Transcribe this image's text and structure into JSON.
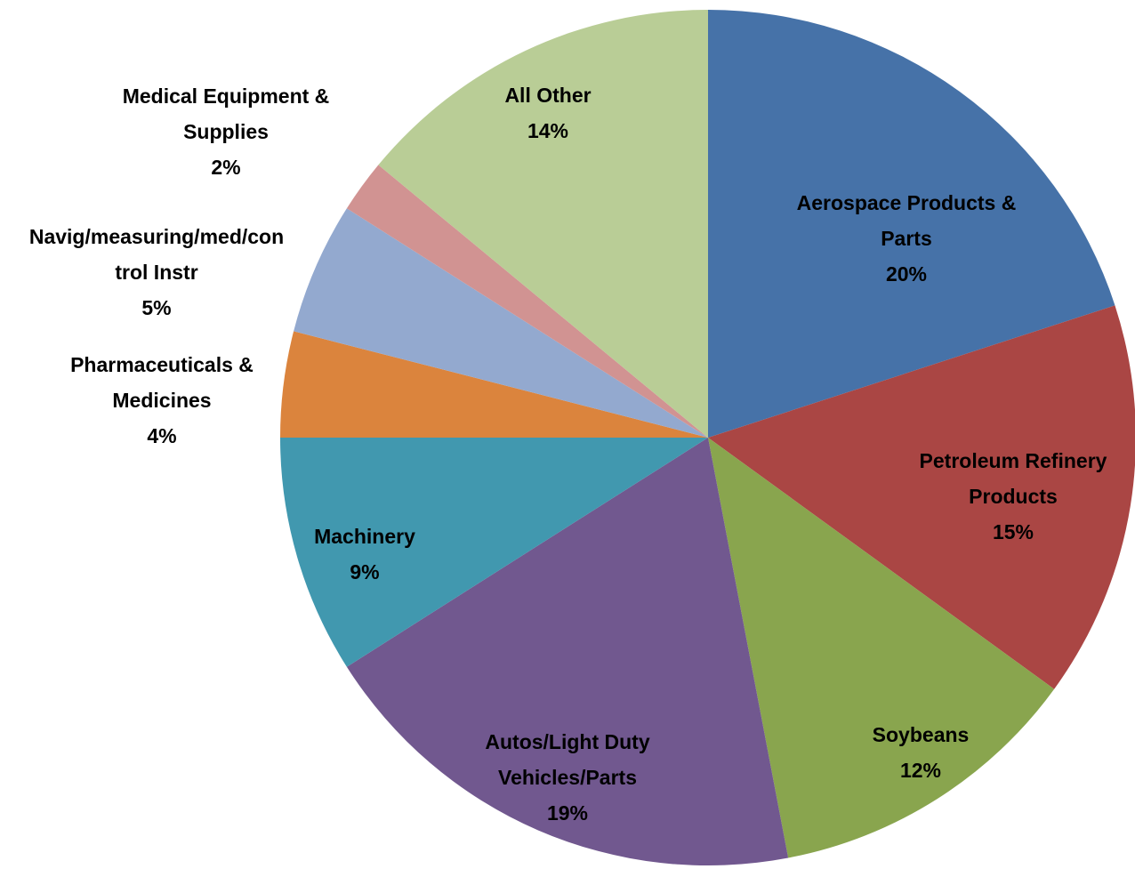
{
  "chart_data": {
    "type": "pie",
    "categories": [
      "Aerospace Products & Parts",
      "Petroleum Refinery Products",
      "Soybeans",
      "Autos/Light Duty Vehicles/Parts",
      "Machinery",
      "Pharmaceuticals & Medicines",
      "Navig/measuring/med/control Instr",
      "Medical Equipment & Supplies",
      "All Other"
    ],
    "values": [
      20,
      15,
      12,
      19,
      9,
      4,
      5,
      2,
      14
    ],
    "value_labels": [
      "20%",
      "15%",
      "12%",
      "19%",
      "9%",
      "4%",
      "5%",
      "2%",
      "14%"
    ],
    "colors": [
      "#4672a8",
      "#aa4644",
      "#89a54e",
      "#71588f",
      "#4198af",
      "#db843d",
      "#93a9cf",
      "#d19392",
      "#b9cd96"
    ]
  }
}
